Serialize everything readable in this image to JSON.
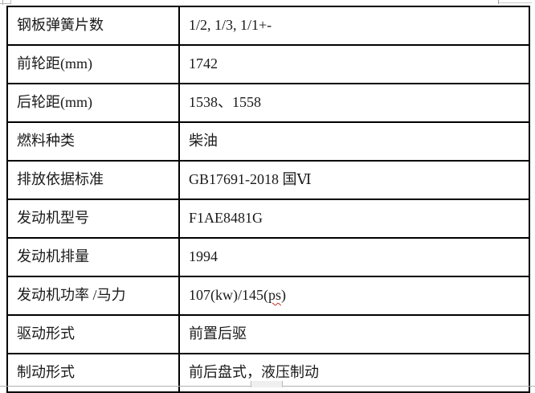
{
  "table": {
    "rows": [
      {
        "label": "钢板弹簧片数",
        "value": "1/2, 1/3, 1/1+-"
      },
      {
        "label": "前轮距(mm)",
        "value": "1742"
      },
      {
        "label": "后轮距(mm)",
        "value": "1538、1558"
      },
      {
        "label": "燃料种类",
        "value": "柴油"
      },
      {
        "label": "排放依据标准",
        "value": "GB17691-2018 国Ⅵ"
      },
      {
        "label": "发动机型号",
        "value": "F1AE8481G"
      },
      {
        "label": "发动机排量",
        "value": "1994"
      },
      {
        "label": "发动机功率 /马力",
        "value_prefix": "107(kw)/145(",
        "value_misspelled": "ps",
        "value_suffix": ")"
      },
      {
        "label": "驱动形式",
        "value": "前置后驱"
      },
      {
        "label": "制动形式",
        "value": "前后盘式，液压制动"
      }
    ]
  },
  "colors": {
    "table_border": "#000000",
    "text": "#1a1a1a",
    "spellcheck_underline": "#cc2a1d",
    "artifact_gray": "#b0b0b0"
  }
}
